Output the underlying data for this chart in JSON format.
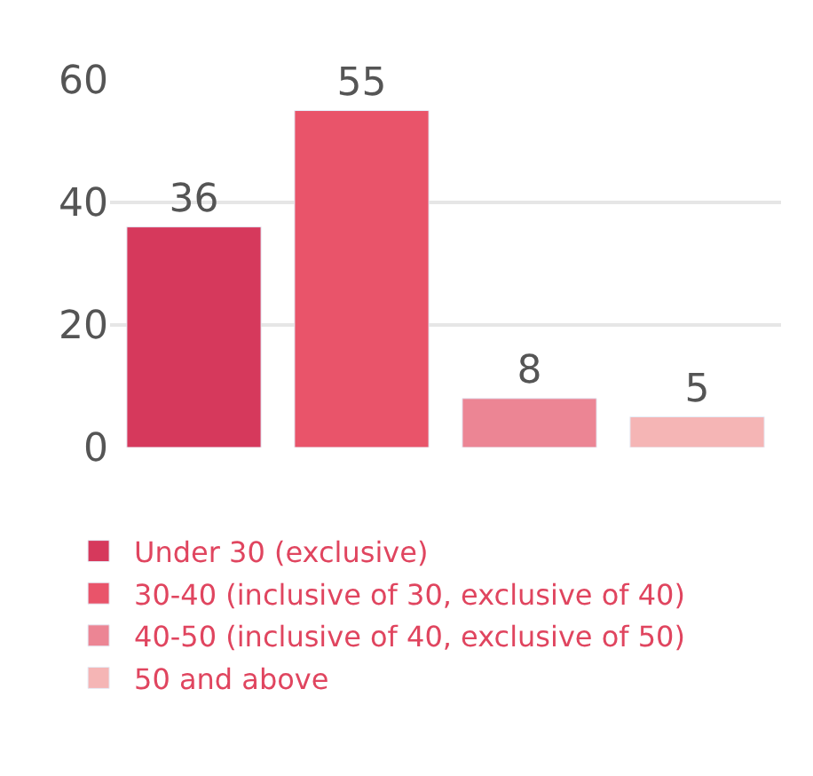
{
  "chart_data": {
    "type": "bar",
    "categories": [
      null,
      null,
      null,
      null
    ],
    "series": [
      {
        "name": "Under 30 (exclusive)",
        "color": "#d6395c",
        "values": [
          36,
          null,
          null,
          null
        ]
      },
      {
        "name": "30-40 (inclusive of 30, exclusive of 40)",
        "color": "#e9546a",
        "values": [
          null,
          55,
          null,
          null
        ]
      },
      {
        "name": "40-50 (inclusive of 40, exclusive of 50)",
        "color": "#ec8594",
        "values": [
          null,
          null,
          8,
          null
        ]
      },
      {
        "name": "50 and above",
        "color": "#f5b5b5",
        "values": [
          null,
          null,
          null,
          5
        ]
      }
    ],
    "ylim": [
      0,
      60
    ],
    "yticks": [
      0,
      20,
      40,
      60
    ],
    "grid": "y",
    "legend": "bottom",
    "data_labels": true
  }
}
